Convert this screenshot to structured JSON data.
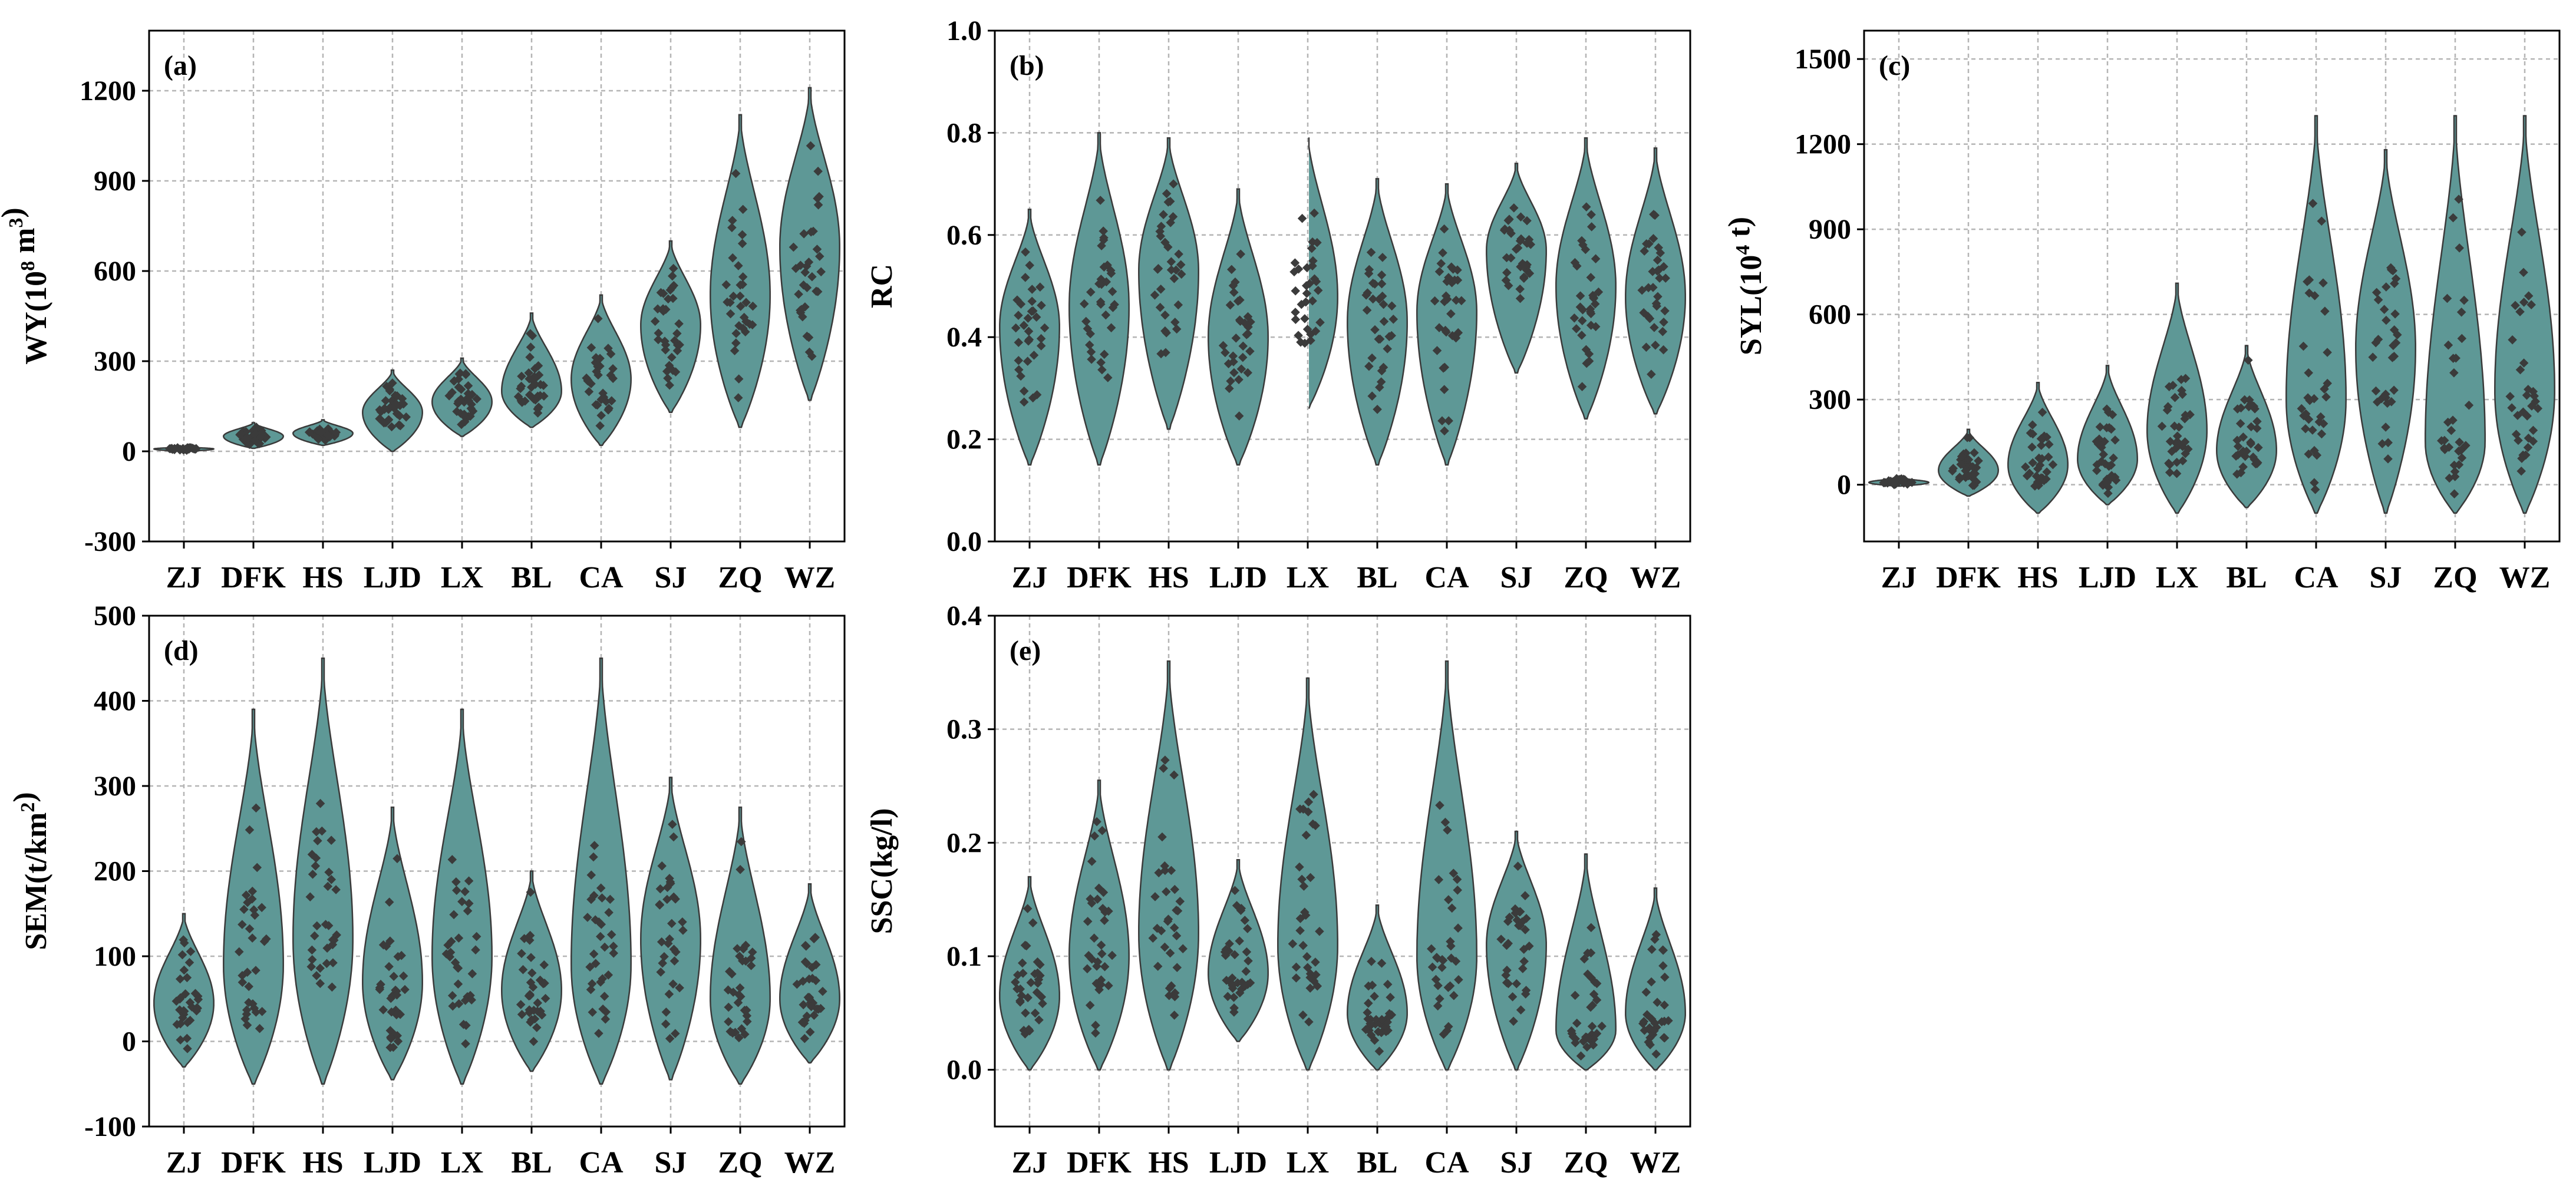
{
  "chart_data": [
    {
      "type": "violin",
      "panel": "(a)",
      "ylabel": "WY(10^8 m^3)",
      "ylabel_parts": {
        "base": "WY(10",
        "sup": "8",
        "mid": " m",
        "sup2": "3",
        "tail": ")"
      },
      "ylim": [
        -300,
        1400
      ],
      "yticks": [
        -300,
        0,
        300,
        600,
        900,
        1200
      ],
      "categories": [
        "ZJ",
        "DFK",
        "HS",
        "LJD",
        "LX",
        "BL",
        "CA",
        "SJ",
        "ZQ",
        "WZ"
      ],
      "ranges": [
        [
          0,
          15
        ],
        [
          10,
          95
        ],
        [
          20,
          105
        ],
        [
          0,
          270
        ],
        [
          50,
          310
        ],
        [
          80,
          460
        ],
        [
          20,
          520
        ],
        [
          130,
          700
        ],
        [
          80,
          1120
        ],
        [
          170,
          1210
        ]
      ],
      "medians": [
        8,
        50,
        60,
        130,
        165,
        200,
        240,
        420,
        520,
        680
      ],
      "grid": true,
      "color": "#5e9896"
    },
    {
      "type": "violin",
      "panel": "(b)",
      "ylabel": "RC",
      "ylabel_parts": {
        "base": "RC",
        "sup": "",
        "mid": "",
        "sup2": "",
        "tail": ""
      },
      "ylim": [
        0.0,
        1.0
      ],
      "yticks": [
        0.0,
        0.2,
        0.4,
        0.6,
        0.8,
        1.0
      ],
      "categories": [
        "ZJ",
        "DFK",
        "HS",
        "LJD",
        "LX",
        "BL",
        "CA",
        "SJ",
        "ZQ",
        "WZ"
      ],
      "ranges": [
        [
          0.15,
          0.65
        ],
        [
          0.15,
          0.8
        ],
        [
          0.22,
          0.79
        ],
        [
          0.15,
          0.69
        ],
        [
          0.26,
          0.8
        ],
        [
          0.15,
          0.71
        ],
        [
          0.15,
          0.7
        ],
        [
          0.33,
          0.74
        ],
        [
          0.24,
          0.79
        ],
        [
          0.25,
          0.77
        ]
      ],
      "medians": [
        0.42,
        0.46,
        0.53,
        0.4,
        0.48,
        0.43,
        0.45,
        0.57,
        0.5,
        0.48
      ],
      "grid": true,
      "color": "#5e9896"
    },
    {
      "type": "violin",
      "panel": "(c)",
      "ylabel": "SYL(10^4 t)",
      "ylabel_parts": {
        "base": "SYL(10",
        "sup": "4",
        "mid": " t)",
        "sup2": "",
        "tail": ""
      },
      "ylim": [
        -200,
        1600
      ],
      "yticks": [
        0,
        300,
        600,
        900,
        1200,
        1500
      ],
      "categories": [
        "ZJ",
        "DFK",
        "HS",
        "LJD",
        "LX",
        "BL",
        "CA",
        "SJ",
        "ZQ",
        "WZ"
      ],
      "ranges": [
        [
          -5,
          25
        ],
        [
          -40,
          195
        ],
        [
          -100,
          360
        ],
        [
          -70,
          420
        ],
        [
          -100,
          710
        ],
        [
          -80,
          490
        ],
        [
          -100,
          1300
        ],
        [
          -100,
          1180
        ],
        [
          -100,
          1300
        ],
        [
          -100,
          1300
        ]
      ],
      "medians": [
        8,
        50,
        70,
        90,
        190,
        120,
        300,
        480,
        150,
        330
      ],
      "grid": true,
      "color": "#5e9896"
    },
    {
      "type": "violin",
      "panel": "(d)",
      "ylabel": "SEM(t/km^2)",
      "ylabel_parts": {
        "base": "SEM(t/km",
        "sup": "2",
        "mid": ")",
        "sup2": "",
        "tail": ""
      },
      "ylim": [
        -100,
        500
      ],
      "yticks": [
        -100,
        0,
        100,
        200,
        300,
        400,
        500
      ],
      "categories": [
        "ZJ",
        "DFK",
        "HS",
        "LJD",
        "LX",
        "BL",
        "CA",
        "SJ",
        "ZQ",
        "WZ"
      ],
      "ranges": [
        [
          -30,
          150
        ],
        [
          -50,
          390
        ],
        [
          -50,
          450
        ],
        [
          -45,
          275
        ],
        [
          -50,
          390
        ],
        [
          -35,
          200
        ],
        [
          -50,
          450
        ],
        [
          -45,
          310
        ],
        [
          -50,
          275
        ],
        [
          -25,
          185
        ]
      ],
      "medians": [
        45,
        90,
        120,
        70,
        100,
        60,
        90,
        120,
        50,
        50
      ],
      "grid": true,
      "color": "#5e9896"
    },
    {
      "type": "violin",
      "panel": "(e)",
      "ylabel": "SSC(kg/l)",
      "ylabel_parts": {
        "base": "SSC(kg/l)",
        "sup": "",
        "mid": "",
        "sup2": "",
        "tail": ""
      },
      "ylim": [
        -0.05,
        0.4
      ],
      "yticks": [
        0.0,
        0.1,
        0.2,
        0.3,
        0.4
      ],
      "categories": [
        "ZJ",
        "DFK",
        "HS",
        "LJD",
        "LX",
        "BL",
        "CA",
        "SJ",
        "ZQ",
        "WZ"
      ],
      "ranges": [
        [
          0.0,
          0.17
        ],
        [
          0.0,
          0.255
        ],
        [
          0.0,
          0.36
        ],
        [
          0.025,
          0.185
        ],
        [
          0.0,
          0.345
        ],
        [
          0.0,
          0.145
        ],
        [
          0.0,
          0.36
        ],
        [
          0.0,
          0.21
        ],
        [
          0.0,
          0.19
        ],
        [
          0.0,
          0.16
        ]
      ],
      "medians": [
        0.065,
        0.1,
        0.12,
        0.085,
        0.11,
        0.05,
        0.1,
        0.11,
        0.035,
        0.05
      ],
      "grid": true,
      "color": "#5e9896"
    }
  ]
}
